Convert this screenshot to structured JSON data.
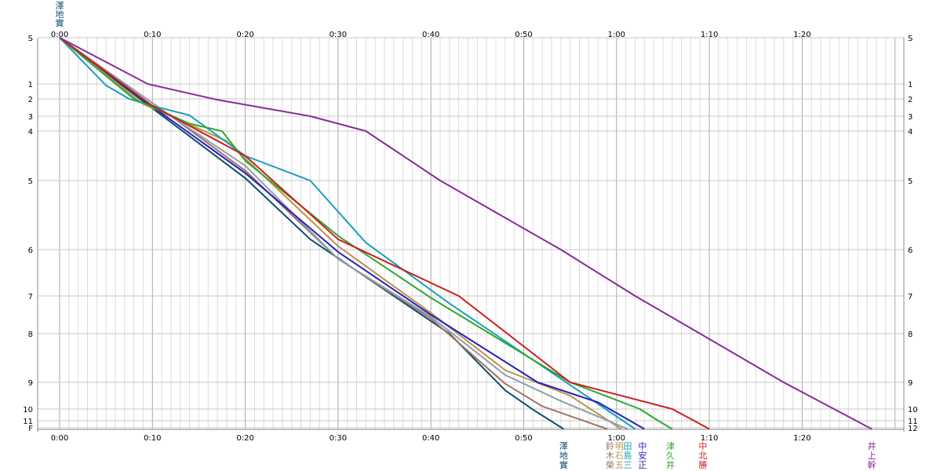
{
  "chart_data": {
    "type": "line",
    "title": "",
    "xlabel": "",
    "ylabel": "",
    "x_unit": "elapsed time (h:mm)",
    "x_range_minutes": [
      0,
      90
    ],
    "x_tick_labels": [
      "0:00",
      "0:10",
      "0:20",
      "0:30",
      "0:40",
      "0:50",
      "1:00",
      "1:10",
      "1:20"
    ],
    "x_tick_minutes": [
      0,
      10,
      20,
      30,
      40,
      50,
      60,
      70,
      80
    ],
    "y_tick_labels": [
      "S",
      "1",
      "2",
      "3",
      "4",
      "5",
      "6",
      "7",
      "8",
      "9",
      "10",
      "11",
      "12"
    ],
    "y_tick_labels_left_bottom": "F",
    "y_inverted": true,
    "grid": true,
    "series": [
      {
        "name": "澤地實",
        "color": "#0b4f6c",
        "points": [
          [
            0,
            0
          ],
          [
            10,
            2.55
          ],
          [
            20,
            4.95
          ],
          [
            27,
            5.85
          ],
          [
            36,
            7.0
          ],
          [
            42,
            8.0
          ],
          [
            48,
            9.3
          ],
          [
            51,
            10.05
          ],
          [
            54.3,
            11.95
          ]
        ]
      },
      {
        "name": "鈴木榮",
        "color": "#a0736a",
        "points": [
          [
            0,
            0
          ],
          [
            12,
            3.0
          ],
          [
            20,
            4.8
          ],
          [
            30,
            6.2
          ],
          [
            40,
            7.6
          ],
          [
            48,
            9.05
          ],
          [
            52,
            9.9
          ],
          [
            59,
            11.95
          ]
        ]
      },
      {
        "name": "明石五",
        "color": "#b8944a",
        "points": [
          [
            0,
            0
          ],
          [
            9,
            2.3
          ],
          [
            18,
            4.2
          ],
          [
            30,
            5.95
          ],
          [
            40,
            7.45
          ],
          [
            48,
            8.75
          ],
          [
            55,
            9.5
          ],
          [
            60.5,
            11.95
          ]
        ]
      },
      {
        "name": "田島三",
        "color": "#8fa0aa",
        "points": [
          [
            0,
            0
          ],
          [
            12,
            3.0
          ],
          [
            20,
            4.7
          ],
          [
            30,
            6.2
          ],
          [
            40,
            7.55
          ],
          [
            48,
            8.85
          ],
          [
            54,
            9.7
          ],
          [
            61.2,
            11.95
          ]
        ]
      },
      {
        "name": "田島三",
        "color": "#18a0b8",
        "points": [
          [
            0,
            0
          ],
          [
            5,
            1.1
          ],
          [
            7.5,
            2.0
          ],
          [
            10,
            2.4
          ],
          [
            14,
            2.95
          ],
          [
            20,
            4.5
          ],
          [
            27,
            5.0
          ],
          [
            33,
            5.9
          ],
          [
            42,
            7.2
          ],
          [
            55,
            9.1
          ],
          [
            62,
            11.95
          ]
        ]
      },
      {
        "name": "中安正",
        "color": "#2a1fb8",
        "points": [
          [
            0,
            0
          ],
          [
            10,
            2.45
          ],
          [
            20,
            4.85
          ],
          [
            30,
            6.05
          ],
          [
            40,
            7.5
          ],
          [
            51.5,
            9.0
          ],
          [
            58,
            9.75
          ],
          [
            63,
            11.95
          ]
        ]
      },
      {
        "name": "津久井",
        "color": "#2ea82e",
        "points": [
          [
            0,
            0
          ],
          [
            8,
            2.0
          ],
          [
            14,
            3.5
          ],
          [
            17.5,
            4.0
          ],
          [
            20,
            4.6
          ],
          [
            30,
            5.8
          ],
          [
            40,
            7.05
          ],
          [
            55,
            9.0
          ],
          [
            62.5,
            10.0
          ],
          [
            64.5,
            11.0
          ],
          [
            66,
            11.95
          ]
        ]
      },
      {
        "name": "中北勝",
        "color": "#c8201e",
        "points": [
          [
            0,
            0
          ],
          [
            10,
            2.4
          ],
          [
            20,
            4.5
          ],
          [
            30,
            5.85
          ],
          [
            43,
            7.0
          ],
          [
            55,
            9.0
          ],
          [
            66,
            10.0
          ],
          [
            70,
            11.95
          ]
        ]
      },
      {
        "name": "井上幹",
        "color": "#8a2b9a",
        "points": [
          [
            0,
            0
          ],
          [
            9.5,
            1.0
          ],
          [
            17,
            2.05
          ],
          [
            27,
            3.0
          ],
          [
            33,
            4.0
          ],
          [
            41,
            5.0
          ],
          [
            54,
            6.0
          ],
          [
            62,
            7.0
          ],
          [
            69,
            8.0
          ],
          [
            78,
            9.0
          ],
          [
            87.5,
            11.95
          ]
        ]
      }
    ],
    "end_labels": [
      {
        "text": "澤地實",
        "color": "#0b4f6c",
        "minute": 54.3
      },
      {
        "text": "鈴木榮",
        "color": "#a0736a",
        "minute": 59.3
      },
      {
        "text": "明石五",
        "color": "#b8944a",
        "minute": 60.3
      },
      {
        "text": "田島三",
        "color": "#18a0b8",
        "minute": 61.2
      },
      {
        "text": "中安正",
        "color": "#2a1fb8",
        "minute": 62.8
      },
      {
        "text": "津久井",
        "color": "#2ea82e",
        "minute": 65.8
      },
      {
        "text": "中北勝",
        "color": "#c8201e",
        "minute": 69.3
      },
      {
        "text": "井上幹",
        "color": "#8a2b9a",
        "minute": 87.5
      }
    ],
    "top_label": {
      "text": "澤地實",
      "color": "#0b4f6c"
    }
  }
}
